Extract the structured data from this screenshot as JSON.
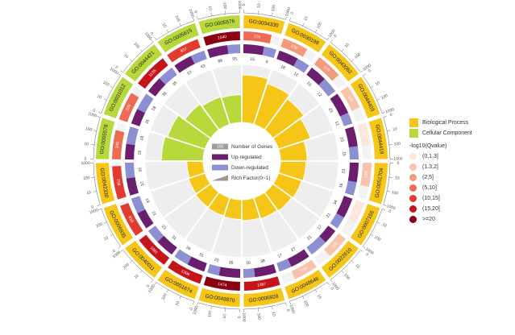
{
  "chart_data": {
    "type": "circos",
    "title": "",
    "terms": [
      {
        "id": "GO:0034330",
        "category": "Biological Process",
        "total": 1000,
        "number_of_genes": 276,
        "up": 15,
        "down": 9,
        "rich_factor": 0.82
      },
      {
        "id": "GO:0030198",
        "category": "Biological Process",
        "total": 1000,
        "number_of_genes": 178,
        "up": 18,
        "down": 12,
        "rich_factor": 0.74
      },
      {
        "id": "GO:0043062",
        "category": "Biological Process",
        "total": 1000,
        "number_of_genes": 179,
        "up": 13,
        "down": 12,
        "rich_factor": 0.66
      },
      {
        "id": "GO:0044403",
        "category": "Biological Process",
        "total": 1000,
        "number_of_genes": 120,
        "up": 23,
        "down": 12,
        "rich_factor": 0.58
      },
      {
        "id": "GO:0044419",
        "category": "Biological Process",
        "total": 1000,
        "number_of_genes": 95,
        "up": 23,
        "down": 15,
        "rich_factor": 0.46
      },
      {
        "id": "GO:0051704",
        "category": "Biological Process",
        "total": 1000,
        "number_of_genes": 120,
        "up": 23,
        "down": 16,
        "rich_factor": 0.44
      },
      {
        "id": "GO:0007155",
        "category": "Biological Process",
        "total": 1000,
        "number_of_genes": 80,
        "up": 34,
        "down": 21,
        "rich_factor": 0.42
      },
      {
        "id": "GO:0022610",
        "category": "Biological Process",
        "total": 1000,
        "number_of_genes": 102,
        "up": 17,
        "down": 21,
        "rich_factor": 0.4
      },
      {
        "id": "GO:0048646",
        "category": "Biological Process",
        "total": 1000,
        "number_of_genes": 133,
        "up": 27,
        "down": 17,
        "rich_factor": 0.38
      },
      {
        "id": "GO:0006928",
        "category": "Biological Process",
        "total": 1000,
        "number_of_genes": 1387,
        "up": 38,
        "down": 20,
        "rich_factor": 0.36
      },
      {
        "id": "GO:0048870",
        "category": "Biological Process",
        "total": 1000,
        "number_of_genes": 1474,
        "up": 36,
        "down": 20,
        "rich_factor": 0.34
      },
      {
        "id": "GO:0051674",
        "category": "Biological Process",
        "total": 1000,
        "number_of_genes": 1304,
        "up": 31,
        "down": 26,
        "rich_factor": 0.33
      },
      {
        "id": "GO:0040011",
        "category": "Biological Process",
        "total": 1000,
        "number_of_genes": 1081,
        "up": 31,
        "down": 23,
        "rich_factor": 0.32
      },
      {
        "id": "GO:0006935",
        "category": "Biological Process",
        "total": 1000,
        "number_of_genes": 816,
        "up": 21,
        "down": 19,
        "rich_factor": 0.3
      },
      {
        "id": "GO:0042330",
        "category": "Biological Process",
        "total": 1000,
        "number_of_genes": 798,
        "up": 21,
        "down": 19,
        "rich_factor": 0.28
      },
      {
        "id": "GO:0005578",
        "category": "Cellular Component",
        "total": 1000,
        "number_of_genes": 345,
        "up": 16,
        "down": 18,
        "rich_factor": 0.72
      },
      {
        "id": "GO:0031012",
        "category": "Cellular Component",
        "total": 1000,
        "number_of_genes": 329,
        "up": 16,
        "down": 18,
        "rich_factor": 0.68
      },
      {
        "id": "GO:0044421",
        "category": "Cellular Component",
        "total": 1000,
        "number_of_genes": 1135,
        "up": 36,
        "down": 35,
        "rich_factor": 0.55
      },
      {
        "id": "GO:0005615",
        "category": "Cellular Component",
        "total": 1000,
        "number_of_genes": 937,
        "up": 57,
        "down": 43,
        "rich_factor": 0.5
      },
      {
        "id": "GO:0005576",
        "category": "Cellular Component",
        "total": 1000,
        "number_of_genes": 1640,
        "up": 88,
        "down": 55,
        "rich_factor": 0.48
      }
    ],
    "scale_ticks": [
      "0",
      "10",
      "100",
      "1000"
    ],
    "inner_legend": [
      "Number of Genes",
      "Up-regulated",
      "Down-regulated",
      "Rich Factor(0~1)"
    ],
    "inner_legend_sample": "100",
    "category_legend": [
      {
        "name": "Biological Process",
        "color": "#F5C518"
      },
      {
        "name": "Cellular Component",
        "color": "#B8D93B"
      }
    ],
    "qvalue_legend_title": "-log10(Qvalue)",
    "qvalue_legend": [
      {
        "label": "(0,1.3]",
        "color": "#FDE6DC"
      },
      {
        "label": "(1.3,2]",
        "color": "#F9C2AB"
      },
      {
        "label": "(2,5]",
        "color": "#F49A7C"
      },
      {
        "label": "(5,10]",
        "color": "#EE6A52"
      },
      {
        "label": "(10,15]",
        "color": "#E23A2E"
      },
      {
        "label": "(15,20]",
        "color": "#C3151A"
      },
      {
        "label": ">=20",
        "color": "#8B0012"
      }
    ],
    "colors": {
      "up": "#6B1E6E",
      "down": "#8C8FD2",
      "sector_bg": "#EEEEEE",
      "track_bg": "#F7F7F7",
      "rich_marker": "#999999"
    }
  }
}
